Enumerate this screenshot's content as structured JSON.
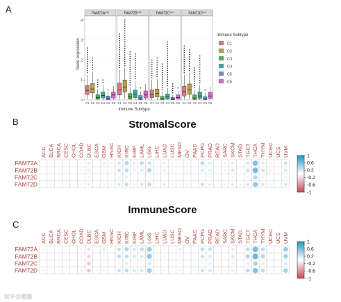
{
  "panels": {
    "a": "A",
    "b": "B",
    "c": "C"
  },
  "watermark": "知乎@雾霾",
  "chart_data": [
    {
      "type": "box",
      "panel": "A",
      "facets": [
        "FAM72A***",
        "FAM72B***",
        "FAM72C***",
        "FAM72D***"
      ],
      "categories": [
        "C1",
        "C2",
        "C3",
        "C4",
        "C5",
        "C6"
      ],
      "xlabel": "Immune Subtype",
      "ylabel": "Gene expression",
      "ylim": [
        0,
        4.2
      ],
      "yticks": [
        0,
        1,
        2,
        3,
        4
      ],
      "legend": {
        "title": "Immune Subtype",
        "position": "right",
        "items": [
          "C1",
          "C2",
          "C3",
          "C4",
          "C5",
          "C6"
        ]
      },
      "colors": [
        "#e2777d",
        "#b5a33f",
        "#4fb34a",
        "#2bb0a6",
        "#6c8fd8",
        "#d36cd0"
      ],
      "series": [
        {
          "name": "FAM72A***",
          "boxes": [
            {
              "q1": 0.28,
              "median": 0.48,
              "q3": 0.72,
              "low": 0.05,
              "high": 1.25,
              "max": 2.6
            },
            {
              "q1": 0.35,
              "median": 0.55,
              "q3": 0.82,
              "low": 0.05,
              "high": 1.4,
              "max": 2.1
            },
            {
              "q1": 0.04,
              "median": 0.12,
              "q3": 0.26,
              "low": 0.0,
              "high": 0.55,
              "max": 1.0
            },
            {
              "q1": 0.1,
              "median": 0.22,
              "q3": 0.4,
              "low": 0.0,
              "high": 0.75,
              "max": 1.0
            },
            {
              "q1": 0.02,
              "median": 0.08,
              "q3": 0.2,
              "low": 0.0,
              "high": 0.4,
              "max": 0.5
            },
            {
              "q1": 0.1,
              "median": 0.25,
              "q3": 0.4,
              "low": 0.0,
              "high": 0.7,
              "max": 0.7
            }
          ]
        },
        {
          "name": "FAM72B***",
          "boxes": [
            {
              "q1": 0.25,
              "median": 0.5,
              "q3": 0.85,
              "low": 0.02,
              "high": 1.5,
              "max": 3.3
            },
            {
              "q1": 0.4,
              "median": 0.65,
              "q3": 1.0,
              "low": 0.05,
              "high": 1.6,
              "max": 4.0
            },
            {
              "q1": 0.05,
              "median": 0.15,
              "q3": 0.32,
              "low": 0.0,
              "high": 0.65,
              "max": 2.4
            },
            {
              "q1": 0.12,
              "median": 0.28,
              "q3": 0.5,
              "low": 0.0,
              "high": 0.95,
              "max": 2.3
            },
            {
              "q1": 0.02,
              "median": 0.1,
              "q3": 0.22,
              "low": 0.0,
              "high": 0.45,
              "max": 0.6
            },
            {
              "q1": 0.1,
              "median": 0.25,
              "q3": 0.45,
              "low": 0.0,
              "high": 0.8,
              "max": 0.8
            }
          ]
        },
        {
          "name": "FAM72C***",
          "boxes": [
            {
              "q1": 0.12,
              "median": 0.28,
              "q3": 0.5,
              "low": 0.0,
              "high": 1.0,
              "max": 2.0
            },
            {
              "q1": 0.15,
              "median": 0.32,
              "q3": 0.55,
              "low": 0.0,
              "high": 1.05,
              "max": 2.1
            },
            {
              "q1": 0.02,
              "median": 0.06,
              "q3": 0.18,
              "low": 0.0,
              "high": 0.4,
              "max": 1.8
            },
            {
              "q1": 0.05,
              "median": 0.15,
              "q3": 0.3,
              "low": 0.0,
              "high": 0.6,
              "max": 2.9
            },
            {
              "q1": 0.01,
              "median": 0.05,
              "q3": 0.12,
              "low": 0.0,
              "high": 0.25,
              "max": 0.8
            },
            {
              "q1": 0.05,
              "median": 0.12,
              "q3": 0.25,
              "low": 0.0,
              "high": 0.45,
              "max": 0.6
            }
          ]
        },
        {
          "name": "FAM72D***",
          "boxes": [
            {
              "q1": 0.2,
              "median": 0.42,
              "q3": 0.68,
              "low": 0.02,
              "high": 1.25,
              "max": 2.7
            },
            {
              "q1": 0.28,
              "median": 0.5,
              "q3": 0.8,
              "low": 0.03,
              "high": 1.35,
              "max": 2.5
            },
            {
              "q1": 0.03,
              "median": 0.1,
              "q3": 0.25,
              "low": 0.0,
              "high": 0.5,
              "max": 1.6
            },
            {
              "q1": 0.08,
              "median": 0.2,
              "q3": 0.4,
              "low": 0.0,
              "high": 0.75,
              "max": 2.2
            },
            {
              "q1": 0.02,
              "median": 0.06,
              "q3": 0.16,
              "low": 0.0,
              "high": 0.35,
              "max": 0.5
            },
            {
              "q1": 0.08,
              "median": 0.2,
              "q3": 0.38,
              "low": 0.0,
              "high": 0.65,
              "max": 0.65
            }
          ]
        }
      ]
    },
    {
      "type": "heatmap",
      "panel": "B",
      "title": "StromalScore",
      "columns": [
        "ACC",
        "BLCA",
        "BRCA",
        "CESC",
        "CHOL",
        "COAD",
        "DLBC",
        "ESCA",
        "GBM",
        "HNSC",
        "KICH",
        "KIRC",
        "KIRP",
        "LAML",
        "LGG",
        "LIHC",
        "LUAD",
        "LUSC",
        "MESO",
        "OV",
        "PAAD",
        "PCPG",
        "PRAD",
        "READ",
        "SARC",
        "SKCM",
        "STAD",
        "TGCT",
        "THCA",
        "THYM",
        "UCEC",
        "UCS",
        "UVM"
      ],
      "rows": [
        "FAM72A",
        "FAM72B",
        "FAM72C",
        "FAM72D"
      ],
      "values": [
        [
          0.05,
          -0.1,
          -0.05,
          -0.05,
          0.0,
          -0.1,
          -0.15,
          -0.05,
          0.15,
          -0.1,
          0.2,
          0.35,
          0.15,
          0.3,
          0.25,
          -0.05,
          -0.15,
          -0.1,
          0.05,
          -0.1,
          -0.05,
          0.3,
          0.2,
          -0.05,
          -0.1,
          -0.15,
          -0.05,
          0.2,
          0.55,
          0.2,
          -0.1,
          -0.05,
          0.25
        ],
        [
          0.0,
          -0.1,
          -0.05,
          -0.05,
          0.0,
          -0.1,
          -0.15,
          -0.05,
          0.1,
          -0.1,
          0.25,
          0.3,
          0.15,
          0.2,
          0.35,
          -0.05,
          -0.15,
          -0.1,
          0.0,
          -0.1,
          -0.05,
          0.2,
          0.15,
          -0.05,
          -0.1,
          -0.2,
          -0.05,
          0.25,
          0.6,
          0.25,
          -0.1,
          -0.05,
          0.2
        ],
        [
          0.0,
          -0.05,
          0.0,
          0.0,
          0.0,
          -0.05,
          -0.1,
          0.0,
          0.05,
          -0.05,
          0.1,
          0.15,
          0.05,
          0.05,
          0.1,
          0.0,
          -0.05,
          -0.05,
          0.0,
          -0.05,
          0.0,
          0.05,
          0.1,
          0.0,
          -0.05,
          -0.1,
          -0.05,
          0.1,
          0.35,
          0.1,
          -0.05,
          0.0,
          0.1
        ],
        [
          0.05,
          -0.1,
          -0.05,
          -0.05,
          0.0,
          -0.1,
          -0.15,
          -0.05,
          0.1,
          -0.1,
          0.2,
          0.3,
          0.15,
          0.2,
          0.3,
          -0.05,
          -0.15,
          -0.1,
          0.05,
          -0.1,
          -0.05,
          0.25,
          0.15,
          -0.05,
          -0.1,
          -0.15,
          -0.05,
          0.2,
          0.5,
          0.2,
          -0.1,
          -0.05,
          0.2
        ]
      ],
      "legend": {
        "position": "right",
        "ticks": [
          1,
          0.6,
          0.2,
          -0.2,
          -0.6,
          -1
        ]
      }
    },
    {
      "type": "heatmap",
      "panel": "C",
      "title": "ImmuneScore",
      "columns": [
        "ACC",
        "BLCA",
        "BRCA",
        "CESC",
        "CHOL",
        "COAD",
        "DLBC",
        "ESCA",
        "GBM",
        "HNSC",
        "KICH",
        "KIRC",
        "KIRP",
        "LAML",
        "LGG",
        "LIHC",
        "LUAD",
        "LUSC",
        "MESO",
        "OV",
        "PAAD",
        "PCPG",
        "PRAD",
        "READ",
        "SARC",
        "SKCM",
        "STAD",
        "TGCT",
        "THCA",
        "THYM",
        "UCEC",
        "UCS",
        "UVM"
      ],
      "rows": [
        "FAM72A",
        "FAM72B",
        "FAM72C",
        "FAM72D"
      ],
      "values": [
        [
          0.1,
          0.0,
          -0.05,
          0.0,
          0.05,
          -0.1,
          -0.2,
          -0.05,
          0.15,
          0.0,
          0.25,
          0.35,
          0.2,
          0.3,
          0.45,
          0.05,
          -0.1,
          0.0,
          0.15,
          0.0,
          0.05,
          0.3,
          0.25,
          -0.05,
          -0.05,
          -0.15,
          0.0,
          0.3,
          0.6,
          0.3,
          0.0,
          0.05,
          0.45
        ],
        [
          0.05,
          0.0,
          -0.05,
          0.0,
          0.05,
          -0.1,
          -0.25,
          -0.05,
          0.1,
          0.0,
          0.3,
          0.3,
          0.2,
          0.2,
          0.5,
          0.05,
          -0.1,
          0.0,
          0.1,
          0.0,
          0.05,
          0.25,
          0.2,
          -0.05,
          -0.05,
          -0.2,
          0.0,
          0.35,
          0.65,
          0.35,
          0.0,
          0.05,
          0.4
        ],
        [
          0.05,
          0.0,
          0.0,
          0.0,
          0.0,
          -0.05,
          -0.3,
          0.0,
          0.05,
          0.0,
          0.1,
          0.15,
          0.1,
          0.05,
          0.2,
          0.0,
          -0.05,
          0.0,
          0.05,
          0.0,
          0.0,
          0.1,
          0.15,
          0.0,
          0.0,
          -0.1,
          0.0,
          0.15,
          0.4,
          0.15,
          0.0,
          0.0,
          0.2
        ],
        [
          0.1,
          0.0,
          -0.05,
          0.0,
          0.05,
          -0.1,
          -0.3,
          -0.05,
          0.1,
          0.0,
          0.25,
          0.3,
          0.2,
          0.2,
          0.45,
          0.05,
          -0.1,
          0.0,
          0.1,
          0.0,
          0.05,
          0.25,
          0.2,
          -0.05,
          -0.05,
          -0.15,
          0.0,
          0.3,
          0.55,
          0.3,
          0.0,
          0.05,
          0.4
        ]
      ],
      "legend": {
        "position": "right",
        "ticks": [
          1,
          0.6,
          0.2,
          -0.2,
          -0.6,
          -1
        ]
      }
    }
  ]
}
